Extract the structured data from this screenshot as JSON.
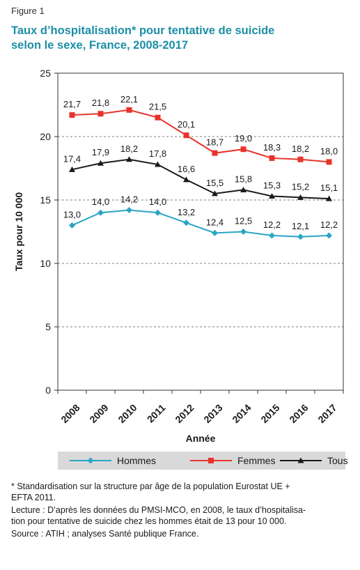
{
  "figure_label": "Figure 1",
  "title_line1": "Taux d’hospitalisation* pour tentative de suicide",
  "title_line2": "selon le sexe, France, 2008-2017",
  "notes": {
    "footnote_line1": "* Standardisation sur la structure par âge de la population Eurostat UE +",
    "footnote_line2": "EFTA 2011.",
    "lecture_line1": "Lecture : D’après les données du PMSI-MCO, en 2008, le taux d’hospitalisa-",
    "lecture_line2": "tion pour tentative de suicide chez les hommes était de 13 pour 10 000.",
    "source": "Source : ATIH ; analyses Santé publique France."
  },
  "chart_data": {
    "type": "line",
    "xlabel": "Année",
    "ylabel": "Taux pour 10 000",
    "ylim": [
      0,
      25
    ],
    "yticks": [
      0,
      5,
      10,
      15,
      20,
      25
    ],
    "grid": "horizontal dashed",
    "legend_position": "bottom",
    "x": [
      "2008",
      "2009",
      "2010",
      "2011",
      "2012",
      "2013",
      "2014",
      "2015",
      "2016",
      "2017"
    ],
    "series": [
      {
        "name": "Hommes",
        "color": "#2aa5c4",
        "marker": "diamond",
        "values": [
          13.0,
          14.0,
          14.2,
          14.0,
          13.2,
          12.4,
          12.5,
          12.2,
          12.1,
          12.2
        ],
        "labels": [
          "13,0",
          "14,0",
          "14,2",
          "14,0",
          "13,2",
          "12,4",
          "12,5",
          "12,2",
          "12,1",
          "12,2"
        ]
      },
      {
        "name": "Femmes",
        "color": "#e8332a",
        "marker": "square",
        "values": [
          21.7,
          21.8,
          22.1,
          21.5,
          20.1,
          18.7,
          19.0,
          18.3,
          18.2,
          18.0
        ],
        "labels": [
          "21,7",
          "21,8",
          "22,1",
          "21,5",
          "20,1",
          "18,7",
          "19,0",
          "18,3",
          "18,2",
          "18,0"
        ]
      },
      {
        "name": "Tous",
        "color": "#1a1a1a",
        "marker": "triangle",
        "values": [
          17.4,
          17.9,
          18.2,
          17.8,
          16.6,
          15.5,
          15.8,
          15.3,
          15.2,
          15.1
        ],
        "labels": [
          "17,4",
          "17,9",
          "18,2",
          "17,8",
          "16,6",
          "15,5",
          "15,8",
          "15,3",
          "15,2",
          "15,1"
        ]
      }
    ]
  }
}
